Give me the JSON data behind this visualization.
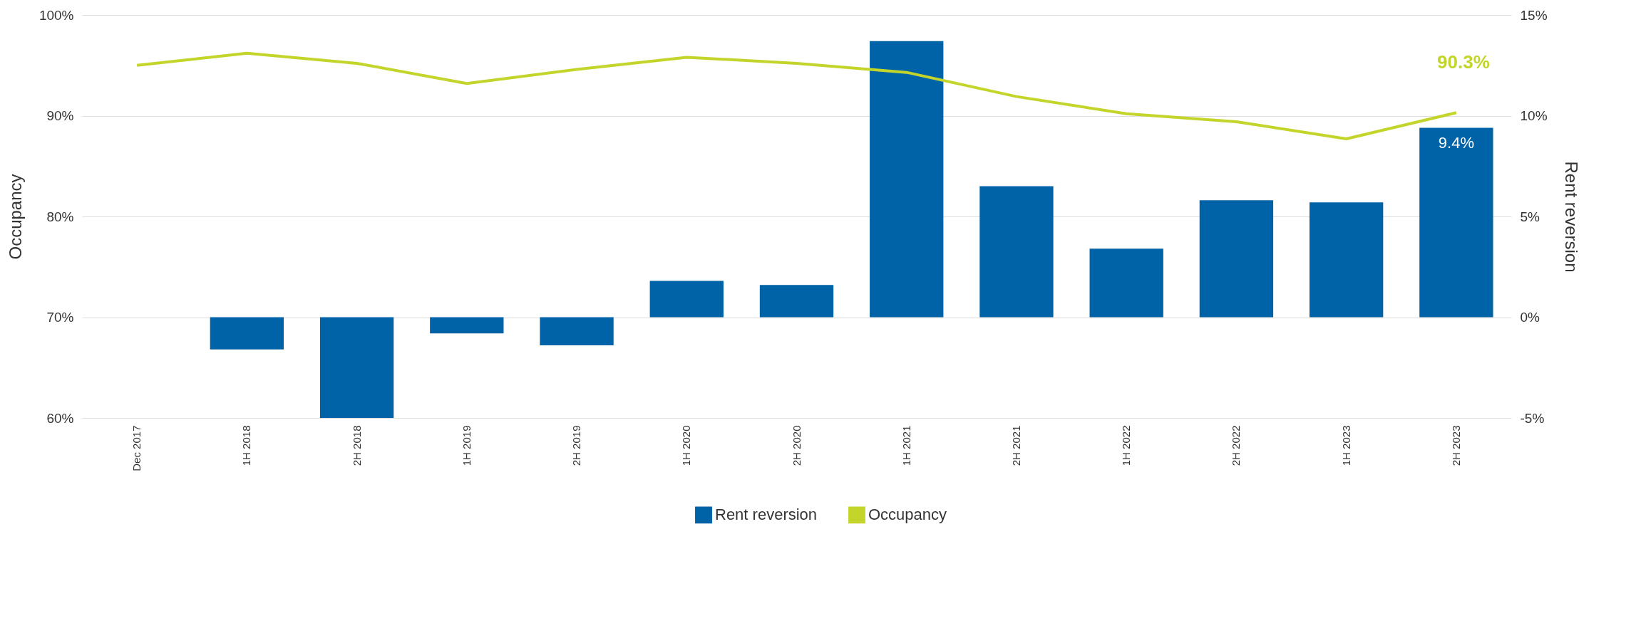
{
  "chart_data": {
    "type": "bar",
    "ylabel": "Occupancy",
    "y2label": "Rent reversion",
    "categories": [
      "Dec 2017",
      "1H 2018",
      "2H 2018",
      "1H 2019",
      "2H 2019",
      "1H 2020",
      "2H 2020",
      "1H 2021",
      "2H 2021",
      "1H 2022",
      "2H 2022",
      "1H 2023",
      "2H 2023"
    ],
    "series": [
      {
        "name": "Rent reversion",
        "axis": "y2",
        "color": "#0062a7",
        "values": [
          null,
          -1.6,
          -5.0,
          -0.8,
          -1.4,
          1.8,
          1.6,
          13.7,
          6.5,
          3.4,
          5.8,
          5.7,
          9.4
        ],
        "value_labels": [
          null,
          null,
          null,
          null,
          null,
          null,
          null,
          null,
          null,
          null,
          null,
          null,
          "9.4%"
        ]
      },
      {
        "name": "Occupancy",
        "type": "line",
        "axis": "y",
        "color": "#c3d52a",
        "values": [
          95.0,
          96.2,
          95.2,
          93.2,
          94.6,
          95.8,
          95.2,
          94.3,
          91.9,
          90.2,
          89.4,
          87.7,
          90.3
        ]
      }
    ],
    "ylim": [
      60,
      100
    ],
    "yticks": [
      {
        "value": 60,
        "label": "60%"
      },
      {
        "value": 70,
        "label": "70%"
      },
      {
        "value": 80,
        "label": "80%"
      },
      {
        "value": 90,
        "label": "90%"
      },
      {
        "value": 100,
        "label": "100%"
      }
    ],
    "y2lim": [
      -5,
      15
    ],
    "y2ticks": [
      {
        "value": -5,
        "label": "-5%"
      },
      {
        "value": 0,
        "label": "0%"
      },
      {
        "value": 5,
        "label": "5%"
      },
      {
        "value": 10,
        "label": "10%"
      },
      {
        "value": 15,
        "label": "15%"
      }
    ],
    "annotations": [
      {
        "text": "90.3%",
        "x": "2H 2023",
        "y": 90.3
      }
    ],
    "grid": "y",
    "legend": "bottom",
    "marker": "none",
    "line_style": "solid"
  }
}
